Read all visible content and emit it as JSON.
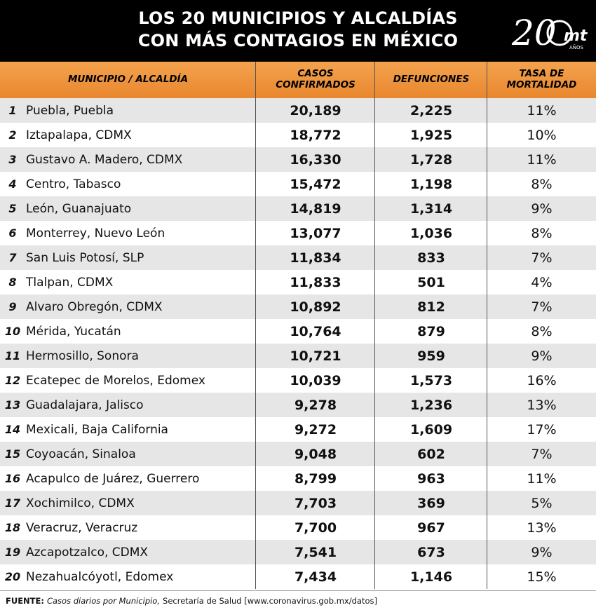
{
  "header": {
    "title_line1": "LOS 20 MUNICIPIOS Y ALCALDÍAS",
    "title_line2": "CON MÁS CONTAGIOS EN MÉXICO",
    "logo_number": "20",
    "logo_mark": "mt",
    "logo_sub": "AÑOS",
    "background": "#000000"
  },
  "chart_data": {
    "type": "table",
    "columns": [
      "MUNICIPIO / ALCALDÍA",
      "CASOS CONFIRMADOS",
      "DEFUNCIONES",
      "TASA DE MORTALIDAD"
    ],
    "rows": [
      {
        "rank": "1",
        "name": "Puebla, Puebla",
        "cases": "20,189",
        "deaths": "2,225",
        "rate": "11%"
      },
      {
        "rank": "2",
        "name": "Iztapalapa, CDMX",
        "cases": "18,772",
        "deaths": "1,925",
        "rate": "10%"
      },
      {
        "rank": "3",
        "name": "Gustavo A. Madero, CDMX",
        "cases": "16,330",
        "deaths": "1,728",
        "rate": "11%"
      },
      {
        "rank": "4",
        "name": "Centro, Tabasco",
        "cases": "15,472",
        "deaths": "1,198",
        "rate": "8%"
      },
      {
        "rank": "5",
        "name": "León, Guanajuato",
        "cases": "14,819",
        "deaths": "1,314",
        "rate": "9%"
      },
      {
        "rank": "6",
        "name": "Monterrey, Nuevo León",
        "cases": "13,077",
        "deaths": "1,036",
        "rate": "8%"
      },
      {
        "rank": "7",
        "name": "San Luis Potosí, SLP",
        "cases": "11,834",
        "deaths": "833",
        "rate": "7%"
      },
      {
        "rank": "8",
        "name": "Tlalpan, CDMX",
        "cases": "11,833",
        "deaths": "501",
        "rate": "4%"
      },
      {
        "rank": "9",
        "name": "Alvaro Obregón, CDMX",
        "cases": "10,892",
        "deaths": "812",
        "rate": "7%"
      },
      {
        "rank": "10",
        "name": "Mérida, Yucatán",
        "cases": "10,764",
        "deaths": "879",
        "rate": "8%"
      },
      {
        "rank": "11",
        "name": "Hermosillo, Sonora",
        "cases": "10,721",
        "deaths": "959",
        "rate": "9%"
      },
      {
        "rank": "12",
        "name": "Ecatepec de Morelos, Edomex",
        "cases": "10,039",
        "deaths": "1,573",
        "rate": "16%"
      },
      {
        "rank": "13",
        "name": "Guadalajara, Jalisco",
        "cases": "9,278",
        "deaths": "1,236",
        "rate": "13%"
      },
      {
        "rank": "14",
        "name": "Mexicali, Baja California",
        "cases": "9,272",
        "deaths": "1,609",
        "rate": "17%"
      },
      {
        "rank": "15",
        "name": "Coyoacán, Sinaloa",
        "cases": "9,048",
        "deaths": "602",
        "rate": "7%"
      },
      {
        "rank": "16",
        "name": "Acapulco de Juárez, Guerrero",
        "cases": "8,799",
        "deaths": "963",
        "rate": "11%"
      },
      {
        "rank": "17",
        "name": "Xochimilco, CDMX",
        "cases": "7,703",
        "deaths": "369",
        "rate": "5%"
      },
      {
        "rank": "18",
        "name": "Veracruz, Veracruz",
        "cases": "7,700",
        "deaths": "967",
        "rate": "13%"
      },
      {
        "rank": "19",
        "name": "Azcapotzalco, CDMX",
        "cases": "7,541",
        "deaths": "673",
        "rate": "9%"
      },
      {
        "rank": "20",
        "name": "Nezahualcóyotl, Edomex",
        "cases": "7,434",
        "deaths": "1,146",
        "rate": "15%"
      }
    ],
    "header_color": "#e8872e",
    "stripe_color": "#e6e6e6"
  },
  "footer": {
    "label": "FUENTE:",
    "source_italic": "Casos diarios por Municipio,",
    "source_rest": "Secretaría de Salud [www.coronavirus.gob.mx/datos]"
  }
}
